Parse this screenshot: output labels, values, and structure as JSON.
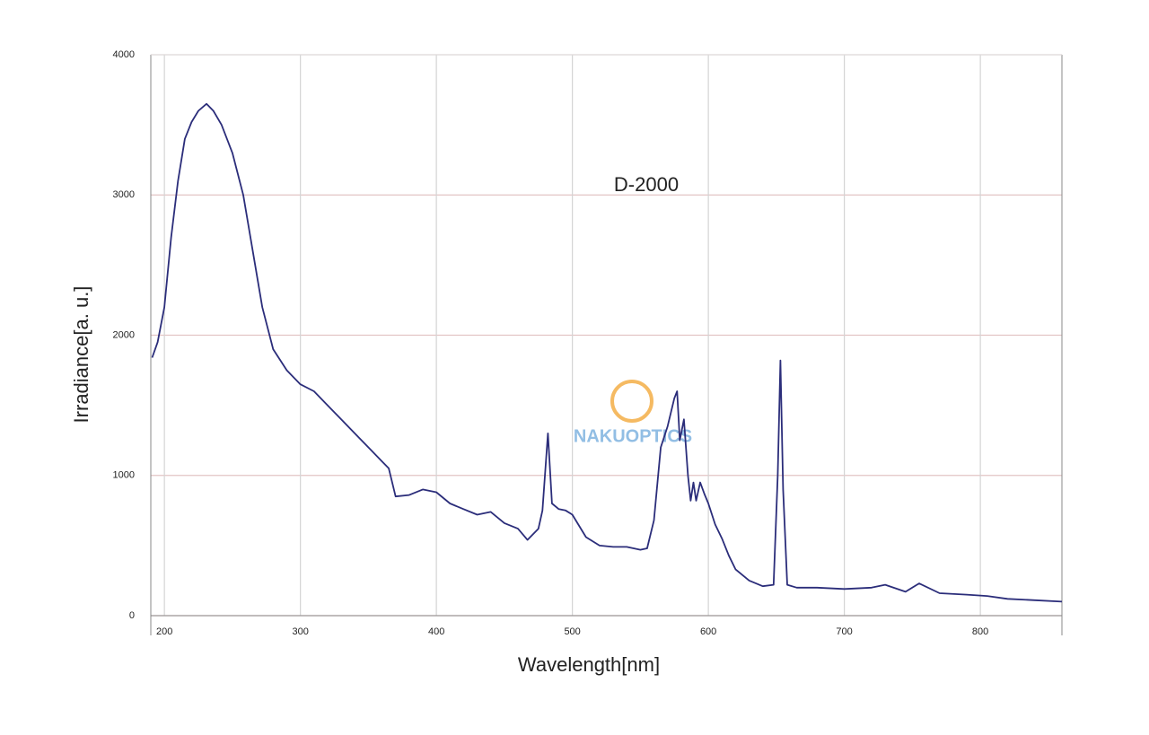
{
  "chart_data": {
    "type": "line",
    "annotation": "D-2000",
    "watermark": "NAKUOPTICS",
    "x_label": "Wavelength[nm]",
    "y_label": "Irradiance[a. u.]",
    "xlim": [
      190,
      860
    ],
    "xticks": [
      200,
      300,
      400,
      500,
      600,
      700,
      800
    ],
    "ylim": [
      0,
      4000
    ],
    "yticks": [
      0,
      1000,
      2000,
      3000,
      4000
    ],
    "grid": true,
    "x": [
      191,
      195,
      200,
      205,
      210,
      215,
      220,
      225,
      231,
      236,
      242,
      250,
      258,
      265,
      272,
      280,
      290,
      300,
      310,
      320,
      330,
      340,
      350,
      360,
      365,
      370,
      380,
      390,
      400,
      410,
      420,
      430,
      440,
      450,
      460,
      467,
      475,
      478,
      482,
      485,
      490,
      495,
      500,
      510,
      520,
      530,
      540,
      550,
      555,
      560,
      565,
      570,
      575,
      577,
      579,
      582,
      585,
      587,
      589,
      591,
      594,
      597,
      600,
      605,
      610,
      615,
      620,
      630,
      640,
      648,
      651,
      653,
      655,
      658,
      665,
      680,
      700,
      720,
      730,
      745,
      755,
      770,
      790,
      805,
      820,
      840,
      860
    ],
    "series": [
      {
        "color": "#2b2d7a",
        "values": [
          1840,
          1950,
          2200,
          2700,
          3100,
          3400,
          3520,
          3600,
          3650,
          3600,
          3500,
          3300,
          3000,
          2600,
          2200,
          1900,
          1750,
          1650,
          1600,
          1500,
          1400,
          1300,
          1200,
          1100,
          1050,
          850,
          860,
          900,
          880,
          800,
          760,
          720,
          740,
          660,
          620,
          540,
          620,
          750,
          1300,
          800,
          760,
          750,
          720,
          560,
          500,
          490,
          490,
          470,
          480,
          680,
          1200,
          1350,
          1550,
          1600,
          1250,
          1400,
          1000,
          820,
          950,
          820,
          950,
          870,
          800,
          650,
          550,
          430,
          330,
          250,
          210,
          220,
          1000,
          1820,
          900,
          220,
          200,
          200,
          190,
          200,
          220,
          170,
          230,
          160,
          150,
          140,
          120,
          110,
          100
        ]
      }
    ]
  }
}
